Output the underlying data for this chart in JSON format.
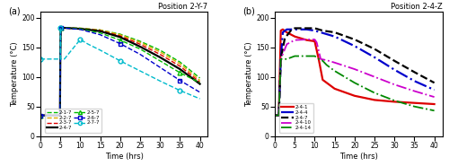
{
  "title_a": "Position 2-Y-7",
  "title_b": "Position 2-4-Z",
  "xlabel": "Time (hrs)",
  "ylabel": "Temperature (°C)",
  "xlim": [
    0,
    42
  ],
  "ylim": [
    0,
    210
  ],
  "yticks": [
    0,
    50,
    100,
    150,
    200
  ],
  "xticks": [
    0,
    5,
    10,
    15,
    20,
    25,
    30,
    35,
    40
  ],
  "panel_a_label": "(a)",
  "panel_b_label": "(b)",
  "curves_a": [
    {
      "label": "2-1-7",
      "color": "#00bb00",
      "linestyle": "--",
      "marker": null,
      "lw": 1.0,
      "points": [
        [
          0,
          35
        ],
        [
          4.9,
          35
        ],
        [
          5.0,
          130
        ],
        [
          5.1,
          183
        ],
        [
          10,
          182
        ],
        [
          15,
          179
        ],
        [
          20,
          172
        ],
        [
          25,
          160
        ],
        [
          30,
          145
        ],
        [
          35,
          125
        ],
        [
          40,
          98
        ]
      ]
    },
    {
      "label": "2-2-7",
      "color": "#ddaa00",
      "linestyle": "--",
      "marker": null,
      "lw": 1.0,
      "points": [
        [
          0,
          35
        ],
        [
          4.9,
          35
        ],
        [
          5.0,
          130
        ],
        [
          5.1,
          183
        ],
        [
          10,
          182
        ],
        [
          15,
          179
        ],
        [
          20,
          171
        ],
        [
          25,
          158
        ],
        [
          30,
          142
        ],
        [
          35,
          122
        ],
        [
          40,
          94
        ]
      ]
    },
    {
      "label": "2-3-7",
      "color": "#dd0000",
      "linestyle": "--",
      "marker": null,
      "lw": 1.0,
      "points": [
        [
          0,
          35
        ],
        [
          4.9,
          35
        ],
        [
          5.0,
          130
        ],
        [
          5.1,
          183
        ],
        [
          10,
          181
        ],
        [
          15,
          178
        ],
        [
          20,
          169
        ],
        [
          25,
          155
        ],
        [
          30,
          138
        ],
        [
          35,
          118
        ],
        [
          40,
          91
        ]
      ]
    },
    {
      "label": "2-4-7",
      "color": "#000000",
      "linestyle": "-",
      "marker": null,
      "lw": 1.6,
      "points": [
        [
          0,
          35
        ],
        [
          4.9,
          35
        ],
        [
          5.0,
          130
        ],
        [
          5.1,
          183
        ],
        [
          10,
          181
        ],
        [
          15,
          177
        ],
        [
          20,
          167
        ],
        [
          25,
          151
        ],
        [
          30,
          133
        ],
        [
          35,
          113
        ],
        [
          40,
          88
        ]
      ]
    },
    {
      "label": "2-5-7",
      "color": "#00bb00",
      "linestyle": "--",
      "marker": "^",
      "markevery": 3,
      "markersize": 3.5,
      "lw": 1.0,
      "points": [
        [
          0,
          35
        ],
        [
          4.9,
          35
        ],
        [
          5.0,
          130
        ],
        [
          5.1,
          183
        ],
        [
          10,
          181
        ],
        [
          15,
          174
        ],
        [
          20,
          162
        ],
        [
          25,
          147
        ],
        [
          30,
          127
        ],
        [
          35,
          107
        ],
        [
          40,
          90
        ]
      ]
    },
    {
      "label": "2-6-7",
      "color": "#0000cc",
      "linestyle": "--",
      "marker": "s",
      "markevery": 3,
      "markersize": 3.5,
      "lw": 1.0,
      "points": [
        [
          0,
          35
        ],
        [
          4.9,
          35
        ],
        [
          5.0,
          130
        ],
        [
          5.1,
          183
        ],
        [
          10,
          180
        ],
        [
          15,
          171
        ],
        [
          20,
          156
        ],
        [
          25,
          138
        ],
        [
          30,
          116
        ],
        [
          35,
          94
        ],
        [
          40,
          74
        ]
      ]
    },
    {
      "label": "2-7-7",
      "color": "#00bbcc",
      "linestyle": "--",
      "marker": "o",
      "markevery": 3,
      "markersize": 3.5,
      "lw": 1.0,
      "points": [
        [
          0,
          130
        ],
        [
          4.9,
          130
        ],
        [
          5.0,
          130
        ],
        [
          5.05,
          183
        ],
        [
          5.1,
          130
        ],
        [
          6.0,
          130
        ],
        [
          10,
          163
        ],
        [
          12,
          155
        ],
        [
          15,
          145
        ],
        [
          20,
          127
        ],
        [
          25,
          110
        ],
        [
          30,
          93
        ],
        [
          35,
          77
        ],
        [
          40,
          63
        ]
      ]
    }
  ],
  "curves_b": [
    {
      "label": "2-4-1",
      "color": "#dd0000",
      "linestyle": "-",
      "marker": null,
      "lw": 1.6,
      "points": [
        [
          0,
          35
        ],
        [
          1.0,
          35
        ],
        [
          1.5,
          178
        ],
        [
          2.0,
          180
        ],
        [
          3.0,
          175
        ],
        [
          5.0,
          168
        ],
        [
          8.0,
          162
        ],
        [
          10.0,
          160
        ],
        [
          11.0,
          130
        ],
        [
          12.0,
          95
        ],
        [
          15,
          80
        ],
        [
          20,
          68
        ],
        [
          25,
          61
        ],
        [
          30,
          58
        ],
        [
          35,
          56
        ],
        [
          40,
          54
        ]
      ]
    },
    {
      "label": "2-4-4",
      "color": "#0000cc",
      "linestyle": "-.",
      "marker": null,
      "lw": 1.6,
      "points": [
        [
          0,
          35
        ],
        [
          1.0,
          35
        ],
        [
          1.5,
          130
        ],
        [
          2.0,
          175
        ],
        [
          3.0,
          180
        ],
        [
          5.0,
          180
        ],
        [
          8.0,
          180
        ],
        [
          10.0,
          178
        ],
        [
          11.5,
          175
        ],
        [
          15,
          168
        ],
        [
          20,
          152
        ],
        [
          25,
          133
        ],
        [
          30,
          112
        ],
        [
          35,
          93
        ],
        [
          40,
          78
        ]
      ]
    },
    {
      "label": "2-4-7",
      "color": "#000000",
      "linestyle": "--",
      "marker": null,
      "lw": 1.6,
      "points": [
        [
          0,
          35
        ],
        [
          1.0,
          35
        ],
        [
          1.5,
          130
        ],
        [
          2.5,
          165
        ],
        [
          4.0,
          178
        ],
        [
          5.0,
          182
        ],
        [
          10.0,
          182
        ],
        [
          11.0,
          180
        ],
        [
          12.0,
          178
        ],
        [
          15,
          175
        ],
        [
          20,
          163
        ],
        [
          25,
          147
        ],
        [
          30,
          127
        ],
        [
          35,
          108
        ],
        [
          40,
          90
        ]
      ]
    },
    {
      "label": "2-4-10",
      "color": "#cc00cc",
      "linestyle": "-.",
      "marker": null,
      "lw": 1.3,
      "points": [
        [
          0,
          35
        ],
        [
          1.0,
          35
        ],
        [
          1.5,
          130
        ],
        [
          3.0,
          155
        ],
        [
          5.0,
          162
        ],
        [
          8.0,
          163
        ],
        [
          10.0,
          163
        ],
        [
          10.5,
          158
        ],
        [
          11.5,
          130
        ],
        [
          13.0,
          128
        ],
        [
          15,
          124
        ],
        [
          20,
          113
        ],
        [
          25,
          100
        ],
        [
          30,
          87
        ],
        [
          35,
          76
        ],
        [
          40,
          66
        ]
      ]
    },
    {
      "label": "2-4-14",
      "color": "#008800",
      "linestyle": "-.",
      "marker": null,
      "lw": 1.3,
      "points": [
        [
          0,
          35
        ],
        [
          1.0,
          35
        ],
        [
          1.5,
          130
        ],
        [
          3.0,
          130
        ],
        [
          5.0,
          135
        ],
        [
          8.0,
          135
        ],
        [
          10.0,
          135
        ],
        [
          10.5,
          133
        ],
        [
          11.0,
          130
        ],
        [
          12.0,
          127
        ],
        [
          13.0,
          120
        ],
        [
          15,
          110
        ],
        [
          20,
          90
        ],
        [
          25,
          73
        ],
        [
          30,
          60
        ],
        [
          35,
          50
        ],
        [
          40,
          43
        ]
      ]
    }
  ],
  "legend_a": {
    "entries": [
      {
        "label": "2-1-7",
        "color": "#00bb00",
        "linestyle": "--",
        "marker": null,
        "lw": 1.0
      },
      {
        "label": "2-2-7",
        "color": "#ddaa00",
        "linestyle": "--",
        "marker": null,
        "lw": 1.0
      },
      {
        "label": "2-3-7",
        "color": "#dd0000",
        "linestyle": "--",
        "marker": null,
        "lw": 1.0
      },
      {
        "label": "2-4-7",
        "color": "#000000",
        "linestyle": "-",
        "marker": null,
        "lw": 1.6
      },
      {
        "label": "2-5-7",
        "color": "#00bb00",
        "linestyle": "--",
        "marker": "^",
        "lw": 1.0
      },
      {
        "label": "2-6-7",
        "color": "#0000cc",
        "linestyle": "--",
        "marker": "s",
        "lw": 1.0
      },
      {
        "label": "2-7-7",
        "color": "#00bbcc",
        "linestyle": "--",
        "marker": "o",
        "lw": 1.0
      }
    ]
  },
  "legend_b": {
    "entries": [
      {
        "label": "2-4-1",
        "color": "#dd0000",
        "linestyle": "-",
        "lw": 1.6
      },
      {
        "label": "2-4-4",
        "color": "#0000cc",
        "linestyle": "-.",
        "lw": 1.6
      },
      {
        "label": "2-4-7",
        "color": "#000000",
        "linestyle": "--",
        "lw": 1.6
      },
      {
        "label": "2-4-10",
        "color": "#cc00cc",
        "linestyle": "-.",
        "lw": 1.3
      },
      {
        "label": "2-4-14",
        "color": "#008800",
        "linestyle": "-.",
        "lw": 1.3
      }
    ]
  }
}
